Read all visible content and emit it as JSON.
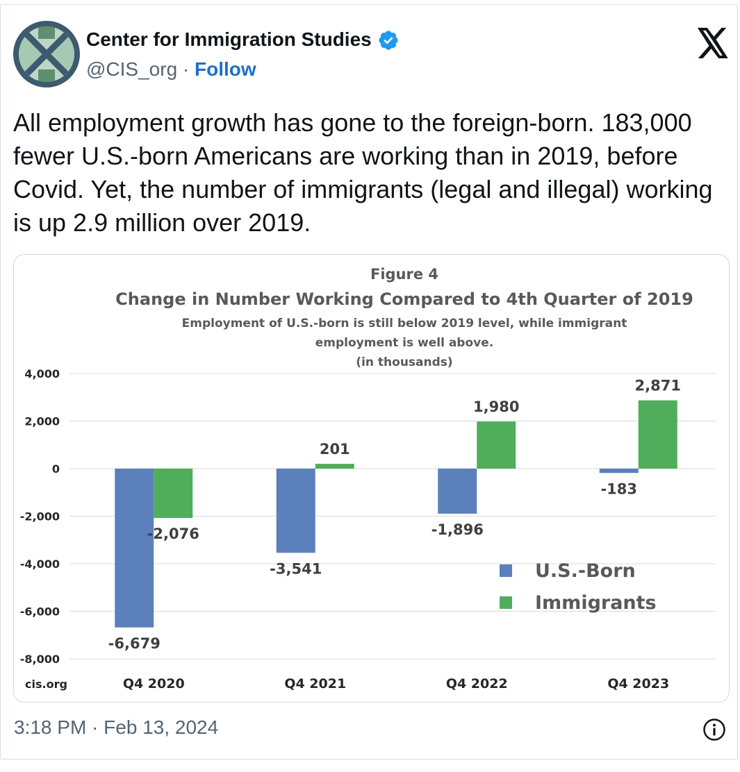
{
  "tweet": {
    "author_name": "Center for Immigration Studies",
    "handle": "@CIS_org",
    "separator": " · ",
    "follow_label": "Follow",
    "text": "All employment growth has gone to the foreign-born. 183,000 fewer U.S.-born Americans are working than in 2019, before Covid. Yet, the number of immigrants (legal and illegal) working is up 2.9 million over 2019.",
    "timestamp": "3:18 PM · Feb 13, 2024",
    "icons": {
      "avatar": "cis-logo-avatar",
      "verified": "verified-badge-icon",
      "platform": "x-logo-icon",
      "info": "info-icon"
    },
    "colors": {
      "follow": "#1d70c8",
      "verified": "#1d9bf0"
    }
  },
  "figure": {
    "label": "Figure 4",
    "source": "cis.org"
  },
  "chart_data": {
    "type": "bar",
    "title": "Change in Number Working Compared to 4th Quarter of 2019",
    "subtitle_lines": [
      "Employment of U.S.-born is still below 2019 level, while immigrant",
      "employment is well above.",
      "(in thousands)"
    ],
    "categories": [
      "Q4 2020",
      "Q4 2021",
      "Q4 2022",
      "Q4 2023"
    ],
    "series": [
      {
        "name": "U.S.-Born",
        "values": [
          -6679,
          -3541,
          -1896,
          -183
        ],
        "color": "#5b80bb",
        "labels": [
          "-6,679",
          "-3,541",
          "-1,896",
          "-183"
        ]
      },
      {
        "name": "Immigrants",
        "values": [
          -2076,
          201,
          1980,
          2871
        ],
        "color": "#4fad5b",
        "labels": [
          "-2,076",
          "201",
          "1,980",
          "2,871"
        ]
      }
    ],
    "ylim": [
      -8000,
      4000
    ],
    "yticks": [
      4000,
      2000,
      0,
      -2000,
      -4000,
      -6000,
      -8000
    ],
    "ytick_labels": [
      "4,000",
      "2,000",
      "0",
      "-2,000",
      "-4,000",
      "-6,000",
      "-8,000"
    ],
    "grid": true,
    "legend_position": "lower-right",
    "xlabel": "",
    "ylabel": ""
  }
}
